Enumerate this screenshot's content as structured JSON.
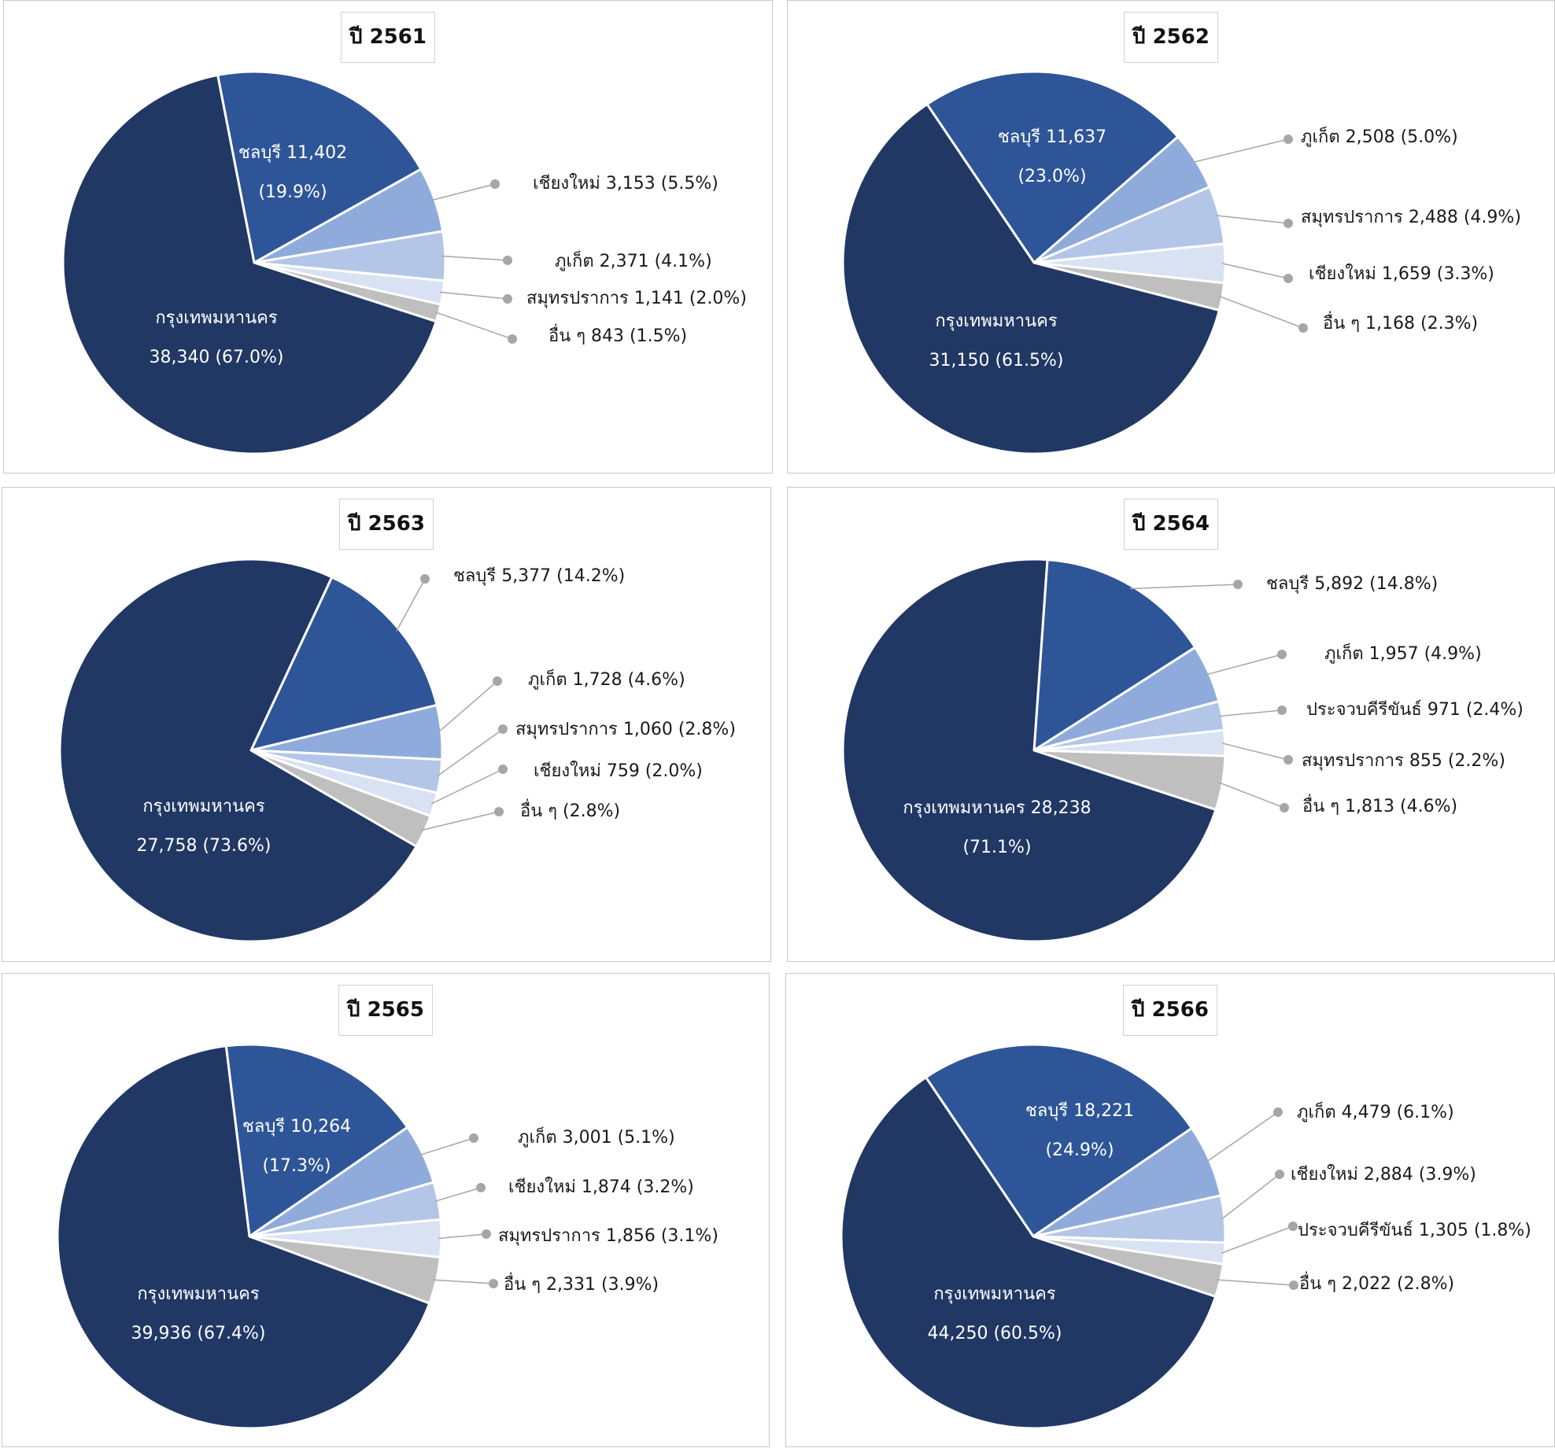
{
  "chart_data": [
    {
      "type": "pie",
      "title": "ปี 2561",
      "slices": [
        {
          "name": "กรุงเทพมหานคร",
          "value": 38340,
          "percent": 67.0,
          "label_lines": [
            "กรุงเทพมหานคร",
            "38,340 (67.0%)"
          ],
          "inside": true
        },
        {
          "name": "ชลบุรี",
          "value": 11402,
          "percent": 19.9,
          "label_lines": [
            "ชลบุรี 11,402",
            "(19.9%)"
          ],
          "inside": true
        },
        {
          "name": "เชียงใหม่",
          "value": 3153,
          "percent": 5.5,
          "label_lines": [
            "เชียงใหม่ 3,153 (5.5%)"
          ],
          "inside": false
        },
        {
          "name": "ภูเก็ต",
          "value": 2371,
          "percent": 4.1,
          "label_lines": [
            "ภูเก็ต 2,371 (4.1%)"
          ],
          "inside": false
        },
        {
          "name": "สมุทรปราการ",
          "value": 1141,
          "percent": 2.0,
          "label_lines": [
            "สมุทรปราการ 1,141 (2.0%)"
          ],
          "inside": false
        },
        {
          "name": "อื่น ๆ",
          "value": 843,
          "percent": 1.5,
          "label_lines": [
            "อื่น ๆ 843 (1.5%)"
          ],
          "inside": false
        }
      ]
    },
    {
      "type": "pie",
      "title": "ปี 2562",
      "slices": [
        {
          "name": "กรุงเทพมหานคร",
          "value": 31150,
          "percent": 61.5,
          "label_lines": [
            "กรุงเทพมหานคร",
            "31,150 (61.5%)"
          ],
          "inside": true
        },
        {
          "name": "ชลบุรี",
          "value": 11637,
          "percent": 23.0,
          "label_lines": [
            "ชลบุรี 11,637",
            "(23.0%)"
          ],
          "inside": true
        },
        {
          "name": "ภูเก็ต",
          "value": 2508,
          "percent": 5.0,
          "label_lines": [
            "ภูเก็ต 2,508 (5.0%)"
          ],
          "inside": false
        },
        {
          "name": "สมุทรปราการ",
          "value": 2488,
          "percent": 4.9,
          "label_lines": [
            "สมุทรปราการ 2,488 (4.9%)"
          ],
          "inside": false
        },
        {
          "name": "เชียงใหม่",
          "value": 1659,
          "percent": 3.3,
          "label_lines": [
            "เชียงใหม่ 1,659 (3.3%)"
          ],
          "inside": false
        },
        {
          "name": "อื่น ๆ",
          "value": 1168,
          "percent": 2.3,
          "label_lines": [
            "อื่น ๆ 1,168 (2.3%)"
          ],
          "inside": false
        }
      ]
    },
    {
      "type": "pie",
      "title": "ปี 2563",
      "slices": [
        {
          "name": "กรุงเทพมหานคร",
          "value": 27758,
          "percent": 73.6,
          "label_lines": [
            "กรุงเทพมหานคร",
            "27,758 (73.6%)"
          ],
          "inside": true
        },
        {
          "name": "ชลบุรี",
          "value": 5377,
          "percent": 14.2,
          "label_lines": [
            "ชลบุรี 5,377 (14.2%)"
          ],
          "inside": false
        },
        {
          "name": "ภูเก็ต",
          "value": 1728,
          "percent": 4.6,
          "label_lines": [
            "ภูเก็ต 1,728 (4.6%)"
          ],
          "inside": false
        },
        {
          "name": "สมุทรปราการ",
          "value": 1060,
          "percent": 2.8,
          "label_lines": [
            "สมุทรปราการ 1,060 (2.8%)"
          ],
          "inside": false
        },
        {
          "name": "เชียงใหม่",
          "value": 759,
          "percent": 2.0,
          "label_lines": [
            "เชียงใหม่ 759 (2.0%)"
          ],
          "inside": false
        },
        {
          "name": "อื่น ๆ",
          "value": 1056,
          "percent": 2.8,
          "label_lines": [
            "อื่น ๆ (2.8%)"
          ],
          "inside": false
        }
      ]
    },
    {
      "type": "pie",
      "title": "ปี 2564",
      "slices": [
        {
          "name": "กรุงเทพมหานคร",
          "value": 28238,
          "percent": 71.1,
          "label_lines": [
            "กรุงเทพมหานคร 28,238",
            "(71.1%)"
          ],
          "inside": true
        },
        {
          "name": "ชลบุรี",
          "value": 5892,
          "percent": 14.8,
          "label_lines": [
            "ชลบุรี 5,892 (14.8%)"
          ],
          "inside": false
        },
        {
          "name": "ภูเก็ต",
          "value": 1957,
          "percent": 4.9,
          "label_lines": [
            "ภูเก็ต 1,957 (4.9%)"
          ],
          "inside": false
        },
        {
          "name": "ประจวบคีรีขันธ์",
          "value": 971,
          "percent": 2.4,
          "label_lines": [
            "ประจวบคีรีขันธ์ 971 (2.4%)"
          ],
          "inside": false
        },
        {
          "name": "สมุทรปราการ",
          "value": 855,
          "percent": 2.2,
          "label_lines": [
            "สมุทรปราการ 855 (2.2%)"
          ],
          "inside": false
        },
        {
          "name": "อื่น ๆ",
          "value": 1813,
          "percent": 4.6,
          "label_lines": [
            "อื่น ๆ 1,813 (4.6%)"
          ],
          "inside": false
        }
      ]
    },
    {
      "type": "pie",
      "title": "ปี 2565",
      "slices": [
        {
          "name": "กรุงเทพมหานคร",
          "value": 39936,
          "percent": 67.4,
          "label_lines": [
            "กรุงเทพมหานคร",
            "39,936  (67.4%)"
          ],
          "inside": true
        },
        {
          "name": "ชลบุรี",
          "value": 10264,
          "percent": 17.3,
          "label_lines": [
            "ชลบุรี  10,264",
            "(17.3%)"
          ],
          "inside": true
        },
        {
          "name": "ภูเก็ต",
          "value": 3001,
          "percent": 5.1,
          "label_lines": [
            "ภูเก็ต  3,001  (5.1%)"
          ],
          "inside": false
        },
        {
          "name": "เชียงใหม่",
          "value": 1874,
          "percent": 3.2,
          "label_lines": [
            "เชียงใหม่  1,874  (3.2%)"
          ],
          "inside": false
        },
        {
          "name": "สมุทรปราการ",
          "value": 1856,
          "percent": 3.1,
          "label_lines": [
            "สมุทรปราการ  1,856  (3.1%)"
          ],
          "inside": false
        },
        {
          "name": "อื่น ๆ",
          "value": 2331,
          "percent": 3.9,
          "label_lines": [
            "อื่น ๆ 2,331 (3.9%)"
          ],
          "inside": false
        }
      ]
    },
    {
      "type": "pie",
      "title": "ปี 2566",
      "slices": [
        {
          "name": "กรุงเทพมหานคร",
          "value": 44250,
          "percent": 60.5,
          "label_lines": [
            "กรุงเทพมหานคร",
            "44,250  (60.5%)"
          ],
          "inside": true
        },
        {
          "name": "ชลบุรี",
          "value": 18221,
          "percent": 24.9,
          "label_lines": [
            "ชลบุรี  18,221",
            "(24.9%)"
          ],
          "inside": true
        },
        {
          "name": "ภูเก็ต",
          "value": 4479,
          "percent": 6.1,
          "label_lines": [
            "ภูเก็ต  4,479  (6.1%)"
          ],
          "inside": false
        },
        {
          "name": "เชียงใหม่",
          "value": 2884,
          "percent": 3.9,
          "label_lines": [
            "เชียงใหม่  2,884  (3.9%)"
          ],
          "inside": false
        },
        {
          "name": "ประจวบคีรีขันธ์",
          "value": 1305,
          "percent": 1.8,
          "label_lines": [
            "ประจวบคีรีขันธ์  1,305  (1.8%)"
          ],
          "inside": false
        },
        {
          "name": "อื่น ๆ",
          "value": 2022,
          "percent": 2.8,
          "label_lines": [
            "อื่น ๆ 2,022 (2.8%)"
          ],
          "inside": false
        }
      ]
    }
  ],
  "colors": [
    "#213865",
    "#2e5597",
    "#8fabdc",
    "#b4c6e7",
    "#d9e2f3",
    "#bfbfbf"
  ],
  "leader_color": "#a6a6a6"
}
